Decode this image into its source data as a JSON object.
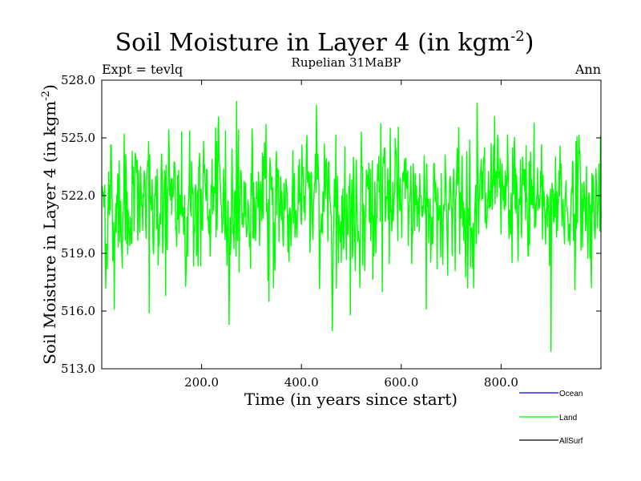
{
  "chart_data": {
    "type": "line",
    "title_main": "Soil Moisture in Layer 4 (in kgm",
    "title_sup": "-2",
    "title_close": ")",
    "subtitle": "Rupelian  31MaBP",
    "left_label": "Expt = tevlq",
    "right_label": "Ann",
    "xlabel": "Time (in years since start)",
    "ylabel_main": "Soil Moisture in Layer 4 (in kgm",
    "ylabel_sup": "-2",
    "ylabel_close": ")",
    "xlim": [
      0,
      1000
    ],
    "ylim": [
      513,
      528
    ],
    "xticks": [
      200,
      400,
      600,
      800
    ],
    "xtick_labels": [
      "200.0",
      "400.0",
      "600.0",
      "800.0"
    ],
    "yticks": [
      513,
      516,
      519,
      522,
      525,
      528
    ],
    "ytick_labels": [
      "513.0",
      "516.0",
      "519.0",
      "522.0",
      "525.0",
      "528.0"
    ],
    "legend_position": "bottom-right, below plot",
    "series": [
      {
        "name": "Ocean",
        "color": "#0000ff",
        "values": []
      },
      {
        "name": "Land",
        "color": "#00ff00",
        "x_start": 1,
        "x_end": 1000,
        "mean": 521.6,
        "min": 513.9,
        "max": 526.9,
        "anchors": [
          [
            1,
            522.5
          ],
          [
            8,
            517.2
          ],
          [
            15,
            521.0
          ],
          [
            25,
            516.1
          ],
          [
            50,
            519.5
          ],
          [
            95,
            515.9
          ],
          [
            128,
            516.8
          ],
          [
            160,
            525.3
          ],
          [
            200,
            521.5
          ],
          [
            230,
            524.8
          ],
          [
            255,
            515.3
          ],
          [
            270,
            526.9
          ],
          [
            300,
            522.0
          ],
          [
            335,
            516.5
          ],
          [
            350,
            524.3
          ],
          [
            400,
            520.5
          ],
          [
            430,
            526.7
          ],
          [
            470,
            517.2
          ],
          [
            498,
            515.8
          ],
          [
            520,
            525.3
          ],
          [
            562,
            517.0
          ],
          [
            578,
            525.5
          ],
          [
            650,
            516.1
          ],
          [
            700,
            521.5
          ],
          [
            752,
            526.8
          ],
          [
            800,
            520.0
          ],
          [
            850,
            524.6
          ],
          [
            900,
            513.9
          ],
          [
            950,
            524.8
          ],
          [
            1000,
            520.8
          ]
        ]
      },
      {
        "name": "AllSurf",
        "color": "#000000",
        "values": []
      }
    ]
  }
}
